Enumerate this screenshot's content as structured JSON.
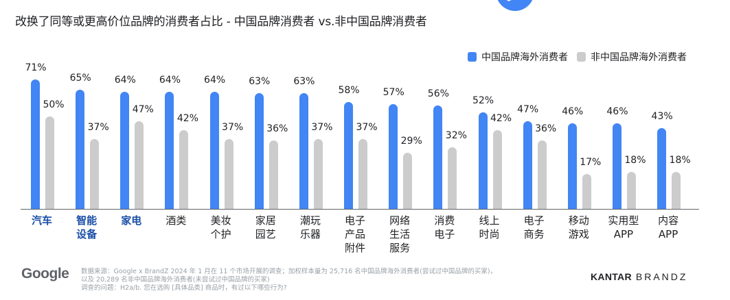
{
  "title": "改换了同等或更高价位品牌的消费者占比 - 中国品牌消费者 vs.非中国品牌消费者",
  "legend": {
    "series1": "中国品牌海外消费者",
    "series2": "非中国品牌海外消费者"
  },
  "colors": {
    "series1": "#4285f4",
    "series2": "#cccccc",
    "highlight_category": "#1a4ea8"
  },
  "chart_data": {
    "type": "bar",
    "title": "改换了同等或更高价位品牌的消费者占比 - 中国品牌消费者 vs.非中国品牌消费者",
    "xlabel": "",
    "ylabel": "",
    "ylim": [
      0,
      80
    ],
    "grid": false,
    "legend_position": "top-right",
    "categories": [
      "汽车",
      "智能设备",
      "家电",
      "酒类",
      "美妆个护",
      "家居园艺",
      "潮玩乐器",
      "电子产品附件",
      "网络生活服务",
      "消费电子",
      "线上时尚",
      "电子商务",
      "移动游戏",
      "实用型APP",
      "内容APP"
    ],
    "highlighted_categories": [
      "汽车",
      "智能设备",
      "家电"
    ],
    "series": [
      {
        "name": "中国品牌海外消费者",
        "values": [
          71,
          65,
          64,
          64,
          64,
          63,
          63,
          58,
          57,
          56,
          52,
          47,
          46,
          46,
          43
        ]
      },
      {
        "name": "非中国品牌海外消费者",
        "values": [
          50,
          37,
          47,
          42,
          37,
          36,
          37,
          37,
          29,
          32,
          42,
          36,
          17,
          18,
          18
        ]
      }
    ]
  },
  "groups": [
    {
      "lines": [
        "汽车"
      ],
      "highlight": true,
      "v1": "71%",
      "v2": "50%"
    },
    {
      "lines": [
        "智能",
        "设备"
      ],
      "highlight": true,
      "v1": "65%",
      "v2": "37%"
    },
    {
      "lines": [
        "家电"
      ],
      "highlight": true,
      "v1": "64%",
      "v2": "47%"
    },
    {
      "lines": [
        "酒类"
      ],
      "highlight": false,
      "v1": "64%",
      "v2": "42%"
    },
    {
      "lines": [
        "美妆",
        "个护"
      ],
      "highlight": false,
      "v1": "64%",
      "v2": "37%"
    },
    {
      "lines": [
        "家居",
        "园艺"
      ],
      "highlight": false,
      "v1": "63%",
      "v2": "36%"
    },
    {
      "lines": [
        "潮玩",
        "乐器"
      ],
      "highlight": false,
      "v1": "63%",
      "v2": "37%"
    },
    {
      "lines": [
        "电子",
        "产品",
        "附件"
      ],
      "highlight": false,
      "v1": "58%",
      "v2": "37%"
    },
    {
      "lines": [
        "网络",
        "生活",
        "服务"
      ],
      "highlight": false,
      "v1": "57%",
      "v2": "29%"
    },
    {
      "lines": [
        "消费",
        "电子"
      ],
      "highlight": false,
      "v1": "56%",
      "v2": "32%"
    },
    {
      "lines": [
        "线上",
        "时尚"
      ],
      "highlight": false,
      "v1": "52%",
      "v2": "42%"
    },
    {
      "lines": [
        "电子",
        "商务"
      ],
      "highlight": false,
      "v1": "47%",
      "v2": "36%"
    },
    {
      "lines": [
        "移动",
        "游戏"
      ],
      "highlight": false,
      "v1": "46%",
      "v2": "17%"
    },
    {
      "lines": [
        "实用型",
        "APP"
      ],
      "highlight": false,
      "v1": "46%",
      "v2": "18%"
    },
    {
      "lines": [
        "内容",
        "APP"
      ],
      "highlight": false,
      "v1": "43%",
      "v2": "18%"
    }
  ],
  "footer": {
    "logo_left": "Google",
    "source_lines": [
      "数据来源：Google x BrandZ 2024 年 1 月在 11 个市场开展的调查；加权样本量为 25,716 名中国品牌海外消费者(尝试过中国品牌的买家)，",
      "以及 20,289 名非中国品牌海外消费者(未尝试过中国品牌的买家)",
      "调查的问题：H2a/b. 您在选购 [具体品类] 商品时，有过以下哪些行为?"
    ],
    "logo_right_bold": "KANTAR",
    "logo_right_light": "BRANDZ"
  }
}
